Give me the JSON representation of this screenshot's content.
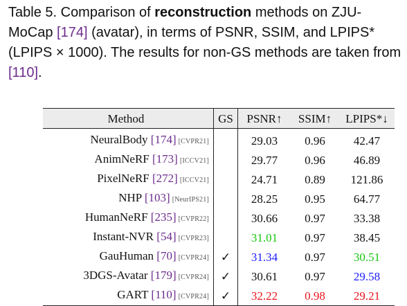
{
  "caption": {
    "prefix": "Table 5.",
    "text_a": " Comparison of ",
    "bold": "reconstruction",
    "text_b": " methods on ZJU-MoCap ",
    "ref": "[174]",
    "text_c": " (avatar), in terms of PSNR, SSIM, and LPIPS* (LPIPS × 1000). The results for non-GS methods are taken from ",
    "ref2": "[110]",
    "text_d": "."
  },
  "table": {
    "headers": {
      "method": "Method",
      "gs": "GS",
      "psnr": "PSNR↑",
      "ssim": "SSIM↑",
      "lpips": "LPIPS*↓"
    },
    "colors": {
      "best": "#e8141c",
      "second": "#1a1aff",
      "third": "#16c60c",
      "ref": "#6b2c8c"
    },
    "rows": [
      {
        "name": "NeuralBody",
        "ref": "[174]",
        "venue": "[CVPR21]",
        "gs": "",
        "psnr": "29.03",
        "ssim": "0.96",
        "lpips": "42.47",
        "psnr_rank": "",
        "ssim_rank": "",
        "lpips_rank": ""
      },
      {
        "name": "AnimNeRF",
        "ref": "[173]",
        "venue": "[ICCV21]",
        "gs": "",
        "psnr": "29.77",
        "ssim": "0.96",
        "lpips": "46.89",
        "psnr_rank": "",
        "ssim_rank": "",
        "lpips_rank": ""
      },
      {
        "name": "PixelNeRF",
        "ref": "[272]",
        "venue": "[ICCV21]",
        "gs": "",
        "psnr": "24.71",
        "ssim": "0.89",
        "lpips": "121.86",
        "psnr_rank": "",
        "ssim_rank": "",
        "lpips_rank": ""
      },
      {
        "name": "NHP",
        "ref": "[103]",
        "venue": "[NeurIPS21]",
        "gs": "",
        "psnr": "28.25",
        "ssim": "0.95",
        "lpips": "64.77",
        "psnr_rank": "",
        "ssim_rank": "",
        "lpips_rank": ""
      },
      {
        "name": "HumanNeRF",
        "ref": "[235]",
        "venue": "[CVPR22]",
        "gs": "",
        "psnr": "30.66",
        "ssim": "0.97",
        "lpips": "33.38",
        "psnr_rank": "",
        "ssim_rank": "",
        "lpips_rank": ""
      },
      {
        "name": "Instant-NVR",
        "ref": "[54]",
        "venue": "[CVPR23]",
        "gs": "",
        "psnr": "31.01",
        "ssim": "0.97",
        "lpips": "38.45",
        "psnr_rank": "third",
        "ssim_rank": "",
        "lpips_rank": ""
      },
      {
        "name": "GauHuman",
        "ref": "[70]",
        "venue": "[CVPR24]",
        "gs": "✓",
        "psnr": "31.34",
        "ssim": "0.97",
        "lpips": "30.51",
        "psnr_rank": "second",
        "ssim_rank": "",
        "lpips_rank": "third"
      },
      {
        "name": "3DGS-Avatar",
        "ref": "[179]",
        "venue": "[CVPR24]",
        "gs": "✓",
        "psnr": "30.61",
        "ssim": "0.97",
        "lpips": "29.58",
        "psnr_rank": "",
        "ssim_rank": "",
        "lpips_rank": "second"
      },
      {
        "name": "GART",
        "ref": "[110]",
        "venue": "[CVPR24]",
        "gs": "✓",
        "psnr": "32.22",
        "ssim": "0.98",
        "lpips": "29.21",
        "psnr_rank": "best",
        "ssim_rank": "best",
        "lpips_rank": "best"
      }
    ]
  }
}
